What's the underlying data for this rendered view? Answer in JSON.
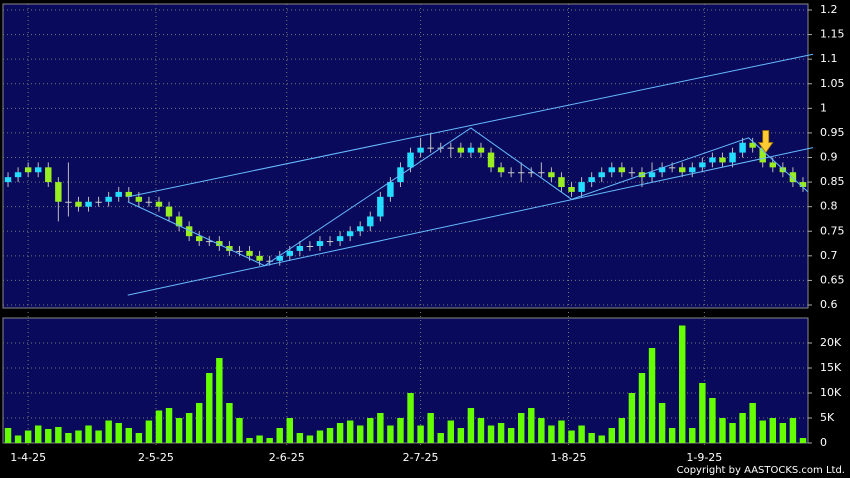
{
  "chart_data": [
    {
      "type": "candlestick",
      "xlim": [
        -0.5,
        79.5
      ],
      "ylim": [
        0.6,
        1.2
      ],
      "yticks": [
        0.6,
        0.65,
        0.7,
        0.75,
        0.8,
        0.85,
        0.9,
        0.95,
        1,
        1.05,
        1.1,
        1.15,
        1.2
      ],
      "xticks": [
        {
          "value": 2,
          "label": "1-4-25"
        },
        {
          "value": 14.7,
          "label": "2-5-25"
        },
        {
          "value": 27.7,
          "label": "2-6-25"
        },
        {
          "value": 41,
          "label": "2-7-25"
        },
        {
          "value": 55.7,
          "label": "1-8-25"
        },
        {
          "value": 69.2,
          "label": "1-9-25"
        }
      ],
      "grid": true,
      "up_color": "#22ddff",
      "down_color": "#99ee22",
      "open": [
        0.85,
        0.86,
        0.88,
        0.87,
        0.88,
        0.85,
        0.81,
        0.81,
        0.8,
        0.81,
        0.81,
        0.82,
        0.83,
        0.82,
        0.81,
        0.81,
        0.8,
        0.78,
        0.76,
        0.74,
        0.73,
        0.73,
        0.72,
        0.71,
        0.71,
        0.7,
        0.69,
        0.69,
        0.7,
        0.71,
        0.72,
        0.72,
        0.73,
        0.73,
        0.74,
        0.75,
        0.76,
        0.78,
        0.82,
        0.85,
        0.88,
        0.91,
        0.92,
        0.92,
        0.92,
        0.92,
        0.91,
        0.92,
        0.91,
        0.88,
        0.87,
        0.87,
        0.87,
        0.87,
        0.87,
        0.86,
        0.84,
        0.83,
        0.85,
        0.86,
        0.87,
        0.88,
        0.87,
        0.87,
        0.86,
        0.87,
        0.88,
        0.88,
        0.87,
        0.88,
        0.89,
        0.9,
        0.89,
        0.91,
        0.93,
        0.92,
        0.89,
        0.88,
        0.87,
        0.85
      ],
      "high": [
        0.87,
        0.88,
        0.89,
        0.89,
        0.89,
        0.86,
        0.89,
        0.82,
        0.82,
        0.82,
        0.83,
        0.84,
        0.84,
        0.83,
        0.82,
        0.82,
        0.81,
        0.79,
        0.77,
        0.75,
        0.74,
        0.74,
        0.73,
        0.72,
        0.72,
        0.71,
        0.7,
        0.71,
        0.72,
        0.73,
        0.73,
        0.74,
        0.74,
        0.75,
        0.76,
        0.77,
        0.79,
        0.83,
        0.86,
        0.89,
        0.92,
        0.94,
        0.95,
        0.93,
        0.93,
        0.93,
        0.93,
        0.93,
        0.92,
        0.89,
        0.88,
        0.89,
        0.88,
        0.89,
        0.88,
        0.87,
        0.85,
        0.86,
        0.87,
        0.88,
        0.89,
        0.89,
        0.88,
        0.88,
        0.89,
        0.89,
        0.89,
        0.89,
        0.89,
        0.9,
        0.91,
        0.91,
        0.92,
        0.94,
        0.94,
        0.93,
        0.9,
        0.89,
        0.88,
        0.86
      ],
      "low": [
        0.84,
        0.85,
        0.86,
        0.86,
        0.84,
        0.77,
        0.78,
        0.79,
        0.79,
        0.8,
        0.8,
        0.81,
        0.81,
        0.8,
        0.8,
        0.79,
        0.77,
        0.75,
        0.73,
        0.72,
        0.72,
        0.71,
        0.7,
        0.7,
        0.69,
        0.68,
        0.68,
        0.68,
        0.69,
        0.7,
        0.71,
        0.71,
        0.72,
        0.72,
        0.73,
        0.74,
        0.75,
        0.77,
        0.81,
        0.84,
        0.87,
        0.9,
        0.91,
        0.91,
        0.9,
        0.9,
        0.9,
        0.9,
        0.87,
        0.86,
        0.86,
        0.85,
        0.86,
        0.86,
        0.85,
        0.83,
        0.82,
        0.82,
        0.84,
        0.85,
        0.86,
        0.86,
        0.86,
        0.84,
        0.85,
        0.86,
        0.87,
        0.86,
        0.86,
        0.87,
        0.88,
        0.88,
        0.88,
        0.9,
        0.91,
        0.88,
        0.87,
        0.86,
        0.84,
        0.83
      ],
      "close": [
        0.86,
        0.87,
        0.87,
        0.88,
        0.85,
        0.81,
        0.81,
        0.8,
        0.81,
        0.81,
        0.82,
        0.83,
        0.82,
        0.81,
        0.81,
        0.8,
        0.78,
        0.76,
        0.74,
        0.73,
        0.73,
        0.72,
        0.71,
        0.71,
        0.7,
        0.69,
        0.69,
        0.7,
        0.71,
        0.72,
        0.72,
        0.73,
        0.73,
        0.74,
        0.75,
        0.76,
        0.78,
        0.82,
        0.85,
        0.88,
        0.91,
        0.92,
        0.92,
        0.92,
        0.92,
        0.91,
        0.92,
        0.91,
        0.88,
        0.87,
        0.87,
        0.87,
        0.87,
        0.87,
        0.86,
        0.84,
        0.83,
        0.85,
        0.86,
        0.87,
        0.88,
        0.87,
        0.87,
        0.86,
        0.87,
        0.88,
        0.88,
        0.87,
        0.88,
        0.89,
        0.9,
        0.89,
        0.91,
        0.93,
        0.92,
        0.89,
        0.88,
        0.87,
        0.85,
        0.84
      ],
      "lines": [
        {
          "color": "#66bbff",
          "x": [
            11.9,
            80
          ],
          "y": [
            0.82,
            1.11
          ]
        },
        {
          "color": "#66bbff",
          "x": [
            11.9,
            80
          ],
          "y": [
            0.62,
            0.92
          ]
        },
        {
          "color": "#66bbff",
          "x": [
            11.9,
            25.5,
            46,
            56,
            73.6,
            79.5
          ],
          "y": [
            0.81,
            0.68,
            0.96,
            0.815,
            0.94,
            0.83
          ]
        }
      ],
      "arrow": {
        "x": 75.3,
        "y": 0.91,
        "color": "#ffcc33"
      }
    },
    {
      "type": "bar",
      "xlim": [
        -0.5,
        79.5
      ],
      "ylim": [
        0,
        25000
      ],
      "yticks": [
        {
          "value": 0,
          "label": "0"
        },
        {
          "value": 5000,
          "label": "5K"
        },
        {
          "value": 10000,
          "label": "10K"
        },
        {
          "value": 15000,
          "label": "15K"
        },
        {
          "value": 20000,
          "label": "20K"
        }
      ],
      "grid": true,
      "color": "#66ff00",
      "values": [
        3000,
        1500,
        2500,
        3500,
        2800,
        3200,
        2000,
        2500,
        3500,
        2500,
        4500,
        4000,
        3000,
        2000,
        4500,
        6500,
        7000,
        5000,
        6000,
        8000,
        14000,
        17000,
        8000,
        5000,
        1000,
        1500,
        1000,
        3000,
        5000,
        2000,
        1500,
        2500,
        3000,
        4000,
        4500,
        3500,
        5000,
        6000,
        3500,
        5000,
        10000,
        3500,
        6000,
        2000,
        4500,
        3000,
        7000,
        5000,
        3500,
        4000,
        3000,
        6000,
        7000,
        5000,
        3500,
        4500,
        2500,
        3500,
        2000,
        1500,
        3000,
        5000,
        10000,
        14000,
        19000,
        8000,
        3000,
        23500,
        3000,
        12000,
        9000,
        5000,
        4000,
        6000,
        8000,
        4500,
        5000,
        4000,
        5000,
        1000
      ]
    }
  ],
  "copyright": "Copyright by AASTOCKS.com Ltd."
}
